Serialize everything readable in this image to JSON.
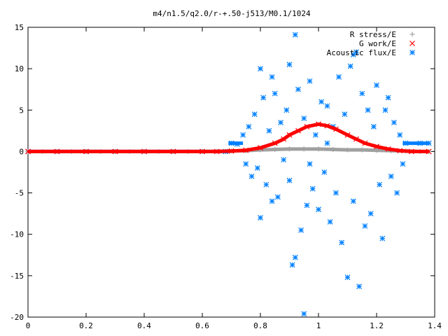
{
  "chart_data": {
    "type": "scatter",
    "title": "m4/n1.5/q2.0/r-+.50-j513/M0.1/1024",
    "xlabel": "",
    "ylabel": "",
    "xlim": [
      0,
      1.4
    ],
    "ylim": [
      -20,
      15
    ],
    "x_ticks": [
      "0",
      "0.2",
      "0.4",
      "0.6",
      "0.8",
      "1",
      "1.2",
      "1.4"
    ],
    "y_ticks": [
      "15",
      "10",
      "5",
      "0",
      "-5",
      "-10",
      "-15",
      "-20"
    ],
    "grid": false,
    "legend_position": "top-right",
    "series": [
      {
        "name": "R stress/E",
        "color": "#a0a0a0",
        "marker": "plus",
        "points": [
          [
            0.0,
            0.0
          ],
          [
            0.05,
            0.0
          ],
          [
            0.1,
            0.0
          ],
          [
            0.15,
            0.0
          ],
          [
            0.2,
            0.0
          ],
          [
            0.25,
            0.0
          ],
          [
            0.3,
            0.0
          ],
          [
            0.35,
            0.0
          ],
          [
            0.4,
            0.0
          ],
          [
            0.45,
            0.0
          ],
          [
            0.5,
            0.0
          ],
          [
            0.55,
            0.0
          ],
          [
            0.6,
            0.0
          ],
          [
            0.65,
            0.0
          ],
          [
            0.7,
            0.05
          ],
          [
            0.75,
            0.1
          ],
          [
            0.8,
            0.2
          ],
          [
            0.85,
            0.25
          ],
          [
            0.9,
            0.3
          ],
          [
            0.95,
            0.3
          ],
          [
            1.0,
            0.3
          ],
          [
            1.05,
            0.25
          ],
          [
            1.1,
            0.2
          ],
          [
            1.15,
            0.2
          ],
          [
            1.2,
            0.15
          ],
          [
            1.25,
            0.1
          ],
          [
            1.3,
            0.05
          ],
          [
            1.35,
            0.0
          ],
          [
            1.38,
            0.0
          ]
        ]
      },
      {
        "name": "G work/E",
        "color": "#ff0000",
        "marker": "cross",
        "points": [
          [
            0.0,
            0.0
          ],
          [
            0.1,
            0.0
          ],
          [
            0.2,
            0.0
          ],
          [
            0.3,
            0.0
          ],
          [
            0.4,
            0.0
          ],
          [
            0.5,
            0.0
          ],
          [
            0.6,
            0.0
          ],
          [
            0.65,
            0.0
          ],
          [
            0.7,
            0.05
          ],
          [
            0.75,
            0.15
          ],
          [
            0.8,
            0.45
          ],
          [
            0.85,
            1.0
          ],
          [
            0.88,
            1.5
          ],
          [
            0.9,
            2.0
          ],
          [
            0.93,
            2.5
          ],
          [
            0.96,
            3.0
          ],
          [
            1.0,
            3.3
          ],
          [
            1.03,
            3.1
          ],
          [
            1.06,
            2.7
          ],
          [
            1.1,
            2.0
          ],
          [
            1.13,
            1.5
          ],
          [
            1.16,
            1.0
          ],
          [
            1.2,
            0.6
          ],
          [
            1.24,
            0.3
          ],
          [
            1.28,
            0.1
          ],
          [
            1.32,
            0.0
          ],
          [
            1.38,
            0.0
          ]
        ]
      },
      {
        "name": "Acoustic flux/E",
        "color": "#0080ff",
        "marker": "star",
        "points": [
          [
            0.0,
            0.0
          ],
          [
            0.1,
            0.0
          ],
          [
            0.2,
            0.0
          ],
          [
            0.3,
            0.0
          ],
          [
            0.4,
            0.0
          ],
          [
            0.5,
            0.0
          ],
          [
            0.6,
            0.0
          ],
          [
            0.68,
            0.0
          ],
          [
            0.7,
            1.0
          ],
          [
            0.72,
            0.9
          ],
          [
            1.3,
            1.0
          ],
          [
            1.35,
            1.0
          ],
          [
            1.38,
            1.0
          ],
          [
            0.74,
            2.0
          ],
          [
            0.75,
            -1.5
          ],
          [
            0.76,
            3.0
          ],
          [
            0.77,
            -3.0
          ],
          [
            0.78,
            4.5
          ],
          [
            0.79,
            -2.0
          ],
          [
            0.8,
            10.0
          ],
          [
            0.8,
            -8.0
          ],
          [
            0.81,
            6.5
          ],
          [
            0.82,
            -4.0
          ],
          [
            0.83,
            2.5
          ],
          [
            0.84,
            -6.0
          ],
          [
            0.85,
            7.0
          ],
          [
            0.86,
            -5.5
          ],
          [
            0.87,
            3.5
          ],
          [
            0.88,
            -1.0
          ],
          [
            0.89,
            5.0
          ],
          [
            0.9,
            10.5
          ],
          [
            0.9,
            -3.5
          ],
          [
            0.91,
            -13.7
          ],
          [
            0.92,
            14.1
          ],
          [
            0.92,
            -12.8
          ],
          [
            0.93,
            7.5
          ],
          [
            0.94,
            -9.5
          ],
          [
            0.95,
            4.0
          ],
          [
            0.96,
            -6.5
          ],
          [
            0.97,
            8.5
          ],
          [
            0.98,
            -4.5
          ],
          [
            0.99,
            2.0
          ],
          [
            1.0,
            -7.0
          ],
          [
            1.01,
            6.0
          ],
          [
            1.02,
            -2.5
          ],
          [
            1.03,
            5.5
          ],
          [
            1.04,
            -8.5
          ],
          [
            1.05,
            3.0
          ],
          [
            1.06,
            -5.0
          ],
          [
            1.07,
            9.0
          ],
          [
            1.08,
            -11.0
          ],
          [
            1.09,
            4.5
          ],
          [
            1.1,
            -15.2
          ],
          [
            1.11,
            10.3
          ],
          [
            1.12,
            -6.0
          ],
          [
            1.13,
            12.0
          ],
          [
            1.14,
            -16.3
          ],
          [
            1.15,
            7.0
          ],
          [
            1.16,
            -9.0
          ],
          [
            1.17,
            5.0
          ],
          [
            1.18,
            -7.5
          ],
          [
            1.19,
            3.0
          ],
          [
            1.2,
            8.0
          ],
          [
            1.21,
            -4.0
          ],
          [
            1.22,
            -10.5
          ],
          [
            1.23,
            5.0
          ],
          [
            1.24,
            6.5
          ],
          [
            1.25,
            -3.0
          ],
          [
            1.26,
            3.5
          ],
          [
            1.27,
            -5.0
          ],
          [
            1.28,
            2.0
          ],
          [
            1.29,
            -1.5
          ],
          [
            0.95,
            -19.6
          ],
          [
            0.84,
            9.0
          ],
          [
            1.12,
            11.7
          ],
          [
            1.03,
            1.0
          ],
          [
            0.97,
            -1.5
          ]
        ]
      }
    ]
  }
}
